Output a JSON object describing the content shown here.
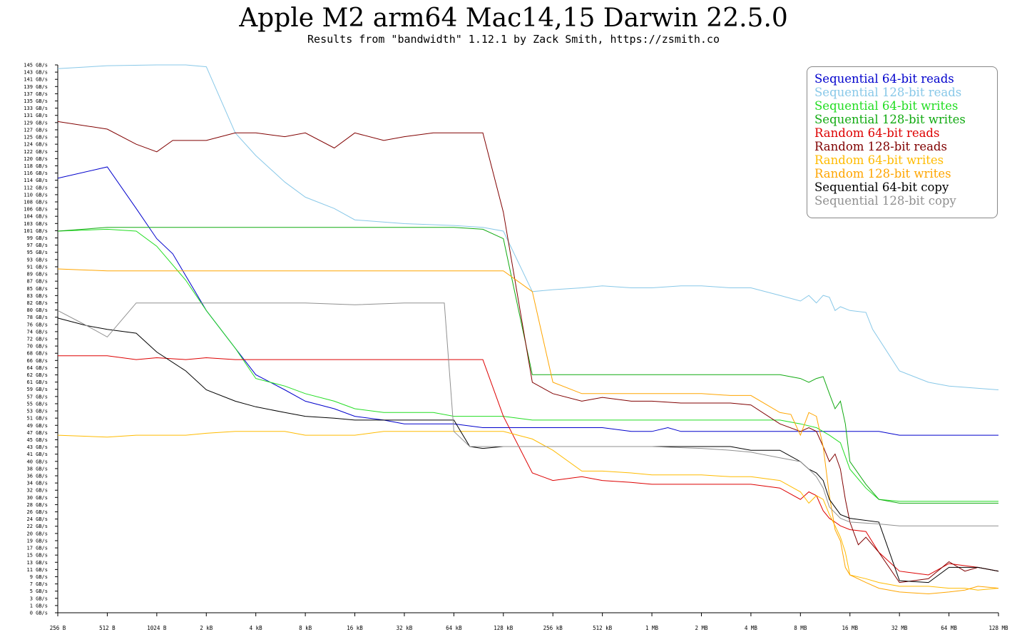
{
  "title": "Apple M2 arm64 Mac14,15 Darwin 22.5.0",
  "subtitle": "Results from \"bandwidth\" 1.12.1 by Zack Smith, https://zsmith.co",
  "chart_data": {
    "type": "line",
    "title": "Apple M2 arm64 Mac14,15 Darwin 22.5.0",
    "subtitle": "Results from \"bandwidth\" 1.12.1 by Zack Smith, https://zsmith.co",
    "xlabel": "",
    "ylabel": "",
    "x_scale": "log2",
    "x_unit": "bytes",
    "x_ticks": [
      256,
      512,
      1024,
      2048,
      4096,
      8192,
      16384,
      32768,
      65536,
      131072,
      262144,
      524288,
      1048576,
      2097152,
      4194304,
      8388608,
      16777216,
      33554432,
      67108864,
      134217728
    ],
    "x_tick_labels": [
      "256 B",
      "512 B",
      "1024 B",
      "2 kB",
      "4 kB",
      "8 kB",
      "16 kB",
      "32 kB",
      "64 kB",
      "128 kB",
      "256 kB",
      "512 kB",
      "1 MB",
      "2 MB",
      "4 MB",
      "8 MB",
      "16 MB",
      "32 MB",
      "64 MB",
      "128 MB"
    ],
    "y_tick_labels": [
      "0 GB/s",
      "1 GB/s",
      "3 GB/s",
      "5 GB/s",
      "7 GB/s",
      "9 GB/s",
      "11 GB/s",
      "13 GB/s",
      "15 GB/s",
      "17 GB/s",
      "19 GB/s",
      "20 GB/s",
      "22 GB/s",
      "24 GB/s",
      "26 GB/s",
      "28 GB/s",
      "30 GB/s",
      "32 GB/s",
      "34 GB/s",
      "36 GB/s",
      "38 GB/s",
      "40 GB/s",
      "41 GB/s",
      "43 GB/s",
      "45 GB/s",
      "47 GB/s",
      "49 GB/s",
      "51 GB/s",
      "53 GB/s",
      "55 GB/s",
      "57 GB/s",
      "59 GB/s",
      "61 GB/s",
      "62 GB/s",
      "64 GB/s",
      "66 GB/s",
      "68 GB/s",
      "70 GB/s",
      "72 GB/s",
      "74 GB/s",
      "76 GB/s",
      "78 GB/s",
      "80 GB/s",
      "82 GB/s",
      "83 GB/s",
      "85 GB/s",
      "87 GB/s",
      "89 GB/s",
      "91 GB/s",
      "93 GB/s",
      "95 GB/s",
      "97 GB/s",
      "99 GB/s",
      "101 GB/s",
      "103 GB/s",
      "104 GB/s",
      "106 GB/s",
      "108 GB/s",
      "110 GB/s",
      "112 GB/s",
      "114 GB/s",
      "116 GB/s",
      "118 GB/s",
      "120 GB/s",
      "122 GB/s",
      "124 GB/s",
      "125 GB/s",
      "127 GB/s",
      "129 GB/s",
      "131 GB/s",
      "133 GB/s",
      "135 GB/s",
      "137 GB/s",
      "139 GB/s",
      "141 GB/s",
      "143 GB/s",
      "145 GB/s"
    ],
    "ylim": [
      0,
      145
    ],
    "grid": false,
    "legend_position": "top-right",
    "series": [
      {
        "name": "Sequential 64-bit reads",
        "color": "#0000cc",
        "x": [
          256,
          512,
          768,
          1024,
          1280,
          2048,
          3072,
          4096,
          6144,
          8192,
          12288,
          16384,
          24576,
          32768,
          49152,
          65536,
          98304,
          131072,
          196608,
          262144,
          393216,
          524288,
          786432,
          1048576,
          1310720,
          1572864,
          2097152,
          3145728,
          4194304,
          6291456,
          8388608,
          12582912,
          16777216,
          25165824,
          33554432,
          50331648,
          67108864,
          100663296,
          134217728
        ],
        "y": [
          115,
          118,
          107,
          99,
          95,
          80,
          70,
          63,
          59,
          56,
          54,
          52,
          51,
          50,
          50,
          50,
          49,
          49,
          49,
          49,
          49,
          49,
          48,
          48,
          49,
          48,
          48,
          48,
          48,
          48,
          48,
          48,
          48,
          48,
          47,
          47,
          47,
          47,
          47
        ]
      },
      {
        "name": "Sequential 128-bit reads",
        "color": "#88c8e8",
        "x": [
          256,
          512,
          1024,
          1536,
          2048,
          3072,
          4096,
          6144,
          8192,
          12288,
          16384,
          32768,
          65536,
          98304,
          131072,
          196608,
          262144,
          393216,
          524288,
          786432,
          1048576,
          1572864,
          2097152,
          3145728,
          4194304,
          6291456,
          8388608,
          9437184,
          10485760,
          11534336,
          12582912,
          13631488,
          14680064,
          16777216,
          20971520,
          23068672,
          33554432,
          50331648,
          67108864,
          134217728
        ],
        "y": [
          144,
          144.8,
          145,
          145,
          144.5,
          127,
          121,
          114,
          110,
          107,
          104,
          103,
          102.5,
          102,
          101,
          85,
          85.5,
          86,
          86.5,
          86,
          86,
          86.5,
          86.5,
          86,
          86,
          84,
          82.5,
          84,
          82,
          84,
          83.5,
          80,
          81,
          80,
          79.5,
          75,
          64,
          61,
          60,
          59
        ]
      },
      {
        "name": "Sequential 64-bit writes",
        "color": "#22dd22",
        "x": [
          256,
          512,
          768,
          1024,
          1536,
          2048,
          3072,
          4096,
          6144,
          8192,
          12288,
          16384,
          24576,
          32768,
          49152,
          65536,
          98304,
          131072,
          196608,
          262144,
          393216,
          524288,
          786432,
          1048576,
          1572864,
          2097152,
          3145728,
          4194304,
          6291456,
          8388608,
          10485760,
          12582912,
          14680064,
          16777216,
          20971520,
          25165824,
          33554432,
          50331648,
          67108864,
          134217728
        ],
        "y": [
          101,
          101.5,
          101,
          97,
          88,
          80,
          70,
          62,
          60,
          58,
          56,
          54,
          53,
          53,
          53,
          52,
          52,
          52,
          51,
          51,
          51,
          51,
          51,
          51,
          51,
          51,
          51,
          51,
          51,
          50,
          49,
          47,
          45,
          38,
          33,
          30,
          29.5,
          29.5,
          29.5,
          29.5
        ]
      },
      {
        "name": "Sequential 128-bit writes",
        "color": "#11aa11",
        "x": [
          256,
          512,
          1024,
          2048,
          4096,
          8192,
          16384,
          32768,
          65536,
          98304,
          131072,
          196608,
          262144,
          524288,
          1048576,
          2097152,
          4194304,
          6291456,
          8388608,
          9437184,
          10485760,
          11534336,
          12582912,
          13631488,
          14680064,
          15728640,
          16777216,
          20971520,
          25165824,
          33554432,
          50331648,
          67108864,
          100663296,
          134217728
        ],
        "y": [
          101,
          102,
          102,
          102,
          102,
          102,
          102,
          102,
          102,
          101.5,
          99,
          63,
          63,
          63,
          63,
          63,
          63,
          63,
          62,
          61,
          62,
          62.5,
          58,
          54,
          56,
          50,
          40,
          34,
          30,
          29,
          29,
          29,
          29,
          29
        ]
      },
      {
        "name": "Random 64-bit reads",
        "color": "#dd0000",
        "x": [
          256,
          512,
          768,
          1024,
          1536,
          2048,
          3072,
          4096,
          8192,
          16384,
          32768,
          65536,
          98304,
          131072,
          196608,
          262144,
          393216,
          524288,
          786432,
          1048576,
          1572864,
          2097152,
          3145728,
          4194304,
          6291456,
          8388608,
          9437184,
          10485760,
          11534336,
          12582912,
          13631488,
          14680064,
          16777216,
          20971520,
          25165824,
          33554432,
          50331648,
          67108864,
          100663296,
          134217728
        ],
        "y": [
          68,
          68,
          67,
          67.5,
          67,
          67.5,
          67,
          67,
          67,
          67,
          67,
          67,
          67,
          52,
          37,
          35,
          36,
          35,
          34.5,
          34,
          34,
          34,
          34,
          34,
          33,
          30,
          32,
          31,
          27,
          25,
          24,
          23,
          22,
          21.5,
          16,
          11,
          10,
          13,
          12,
          11
        ]
      },
      {
        "name": "Random 128-bit reads",
        "color": "#800000",
        "x": [
          256,
          512,
          768,
          1024,
          1280,
          1536,
          2048,
          3072,
          4096,
          6144,
          8192,
          12288,
          16384,
          24576,
          32768,
          49152,
          65536,
          98304,
          131072,
          196608,
          262144,
          393216,
          524288,
          786432,
          1048576,
          1572864,
          2097152,
          3145728,
          4194304,
          6291456,
          8388608,
          9437184,
          10485760,
          11534336,
          12582912,
          13631488,
          14680064,
          15728640,
          16777216,
          18874368,
          20971520,
          25165824,
          33554432,
          50331648,
          67108864,
          83886080,
          100663296,
          134217728
        ],
        "y": [
          130,
          128,
          124,
          122,
          125,
          125,
          125,
          127,
          127,
          126,
          127,
          123,
          127,
          125,
          126,
          127,
          127,
          127,
          106,
          61,
          58,
          56,
          57,
          56,
          56,
          55.5,
          55.5,
          55.5,
          55,
          50,
          48,
          49,
          48,
          44,
          40,
          42,
          38,
          30,
          24,
          18,
          20,
          16,
          8,
          9,
          13.5,
          11,
          12,
          11
        ]
      },
      {
        "name": "Random 64-bit writes",
        "color": "#ffbb00",
        "x": [
          256,
          512,
          768,
          1024,
          1536,
          2048,
          3072,
          4096,
          6144,
          8192,
          12288,
          16384,
          24576,
          32768,
          49152,
          65536,
          98304,
          131072,
          196608,
          262144,
          393216,
          524288,
          786432,
          1048576,
          1572864,
          2097152,
          3145728,
          4194304,
          6291456,
          8388608,
          9437184,
          10485760,
          11534336,
          12582912,
          13631488,
          14680064,
          15728640,
          16777216,
          20971520,
          25165824,
          33554432,
          50331648,
          67108864,
          83886080,
          100663296,
          134217728
        ],
        "y": [
          47,
          46.5,
          47,
          47,
          47,
          47.5,
          48,
          48,
          48,
          47,
          47,
          47,
          48,
          48,
          48,
          48,
          48,
          48,
          46,
          43,
          37.5,
          37.5,
          37,
          36.5,
          36.5,
          36.5,
          36,
          36,
          35,
          32,
          29,
          31,
          30,
          26,
          23,
          20,
          16,
          10,
          9,
          8,
          7,
          7,
          6.5,
          6.5,
          6,
          6.5
        ]
      },
      {
        "name": "Random 128-bit writes",
        "color": "#ffa500",
        "x": [
          256,
          512,
          1024,
          2048,
          4096,
          8192,
          16384,
          32768,
          49152,
          65536,
          98304,
          131072,
          196608,
          262144,
          393216,
          524288,
          786432,
          1048576,
          1572864,
          2097152,
          3145728,
          4194304,
          6291456,
          7340032,
          8388608,
          9437184,
          10485760,
          11534336,
          12582912,
          13631488,
          14680064,
          15728640,
          16777216,
          20971520,
          25165824,
          33554432,
          50331648,
          67108864,
          83886080,
          100663296,
          134217728
        ],
        "y": [
          91,
          90.5,
          90.5,
          90.5,
          90.5,
          90.5,
          90.5,
          90.5,
          90.5,
          90.5,
          90.5,
          90.5,
          85,
          61,
          58,
          58,
          58,
          58,
          58,
          58,
          57.5,
          57.5,
          53,
          52.5,
          47,
          53,
          52,
          44,
          31,
          22,
          19,
          12,
          10,
          8,
          6.5,
          5.5,
          5,
          5.5,
          6,
          7,
          6.5
        ]
      },
      {
        "name": "Sequential 64-bit copy",
        "color": "#000000",
        "x": [
          256,
          384,
          512,
          768,
          1024,
          1536,
          2048,
          3072,
          4096,
          6144,
          8192,
          12288,
          16384,
          24576,
          32768,
          49152,
          65536,
          81920,
          98304,
          131072,
          196608,
          262144,
          524288,
          1048576,
          2097152,
          3145728,
          4194304,
          6291456,
          8388608,
          9437184,
          10485760,
          11534336,
          12582912,
          14680064,
          16777216,
          25165824,
          33554432,
          50331648,
          67108864,
          100663296,
          134217728
        ],
        "y": [
          78,
          76,
          75,
          74,
          69,
          64,
          59,
          56,
          54.5,
          53,
          52,
          51.5,
          51,
          51,
          51,
          51,
          51,
          44,
          43.5,
          44,
          44,
          44,
          44,
          44,
          44,
          44,
          43,
          43,
          40,
          38,
          37,
          35,
          30,
          26,
          25,
          24,
          8.5,
          8,
          12,
          12,
          11
        ]
      },
      {
        "name": "Sequential 128-bit copy",
        "color": "#909090",
        "x": [
          256,
          384,
          512,
          768,
          1024,
          1536,
          2048,
          3072,
          4096,
          8192,
          16384,
          32768,
          49152,
          57344,
          65536,
          81920,
          98304,
          131072,
          196608,
          262144,
          524288,
          1048576,
          2097152,
          3145728,
          4194304,
          6291456,
          8388608,
          9437184,
          10485760,
          11534336,
          12582912,
          14680064,
          16777216,
          25165824,
          33554432,
          50331648,
          67108864,
          100663296,
          134217728
        ],
        "y": [
          80,
          76,
          73,
          82,
          82,
          82,
          82,
          82,
          82,
          82,
          81.5,
          82,
          82,
          82,
          48,
          44,
          44,
          44,
          44,
          44,
          44,
          44,
          43.5,
          43,
          42.5,
          41,
          40,
          38,
          36,
          33,
          28,
          25,
          24,
          23.5,
          23,
          23,
          23,
          23,
          23
        ]
      }
    ]
  }
}
